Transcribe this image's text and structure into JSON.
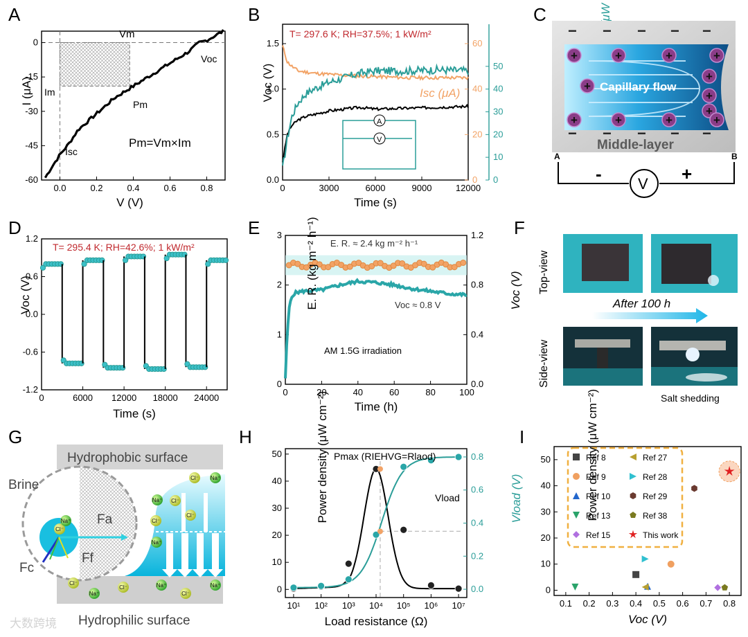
{
  "panels": {
    "A": "A",
    "B": "B",
    "C": "C",
    "D": "D",
    "E": "E",
    "F": "F",
    "G": "G",
    "H": "H",
    "I": "I"
  },
  "watermark": "大数跨境",
  "chart_data": [
    {
      "id": "A",
      "type": "line",
      "xlabel": "V (V)",
      "ylabel": "I (μA)",
      "xlim": [
        -0.1,
        0.9
      ],
      "ylim": [
        -60,
        5
      ],
      "xticks": [
        "0.0",
        "0.2",
        "0.4",
        "0.6",
        "0.8"
      ],
      "yticks": [
        "0",
        "-15",
        "-30",
        "-45",
        "-60"
      ],
      "x": [
        -0.08,
        -0.05,
        0.0,
        0.05,
        0.1,
        0.2,
        0.3,
        0.4,
        0.5,
        0.6,
        0.7,
        0.76,
        0.8,
        0.89
      ],
      "y": [
        -59,
        -55,
        -49,
        -44,
        -38,
        -31,
        -24,
        -19,
        -14,
        -9,
        -4,
        0,
        1,
        5
      ],
      "annotations": {
        "vm": "Vm",
        "voc": "Voc",
        "im": "Im",
        "pm": "Pm",
        "isc": "Isc",
        "eq": "Pm=Vm×Im"
      }
    },
    {
      "id": "B",
      "type": "line",
      "title": "T= 297.6 K;  RH=37.5%;  1 kW/m²",
      "xlabel": "Time (s)",
      "ylabel_left": "Voc (V)",
      "ylabel_right": "Power density (μW cm⁻²)",
      "ylabel_mid": "Isc (μA)",
      "xlim": [
        0,
        12000
      ],
      "ylim_left": [
        0,
        1.5
      ],
      "ylim_right": [
        0,
        60
      ],
      "xticks": [
        "0",
        "3000",
        "6000",
        "9000",
        "12000"
      ],
      "yticks_left": [
        "0.0",
        "0.5",
        "1.0",
        "1.5"
      ],
      "yticks_mid": [
        "0",
        "20",
        "40",
        "60"
      ],
      "yticks_right": [
        "0",
        "10",
        "20",
        "30",
        "40",
        "50"
      ],
      "series": [
        {
          "name": "Voc",
          "color": "#000000",
          "x": [
            0,
            300,
            600,
            1000,
            1500,
            2000,
            3000,
            4000,
            5000,
            6000,
            8000,
            10000,
            12000
          ],
          "values": [
            0.2,
            0.5,
            0.6,
            0.66,
            0.7,
            0.72,
            0.76,
            0.78,
            0.8,
            0.78,
            0.79,
            0.8,
            0.81
          ]
        },
        {
          "name": "Isc",
          "color": "#f2a366",
          "x": [
            0,
            300,
            600,
            1000,
            2000,
            3000,
            4000,
            6000,
            8000,
            10000,
            12000
          ],
          "values": [
            59,
            52,
            50,
            48,
            47,
            46.5,
            46,
            45.5,
            45,
            45,
            45
          ]
        },
        {
          "name": "Power density",
          "color": "#2a9d98",
          "x": [
            0,
            300,
            600,
            1000,
            1500,
            2000,
            3000,
            4000,
            5000,
            6000,
            8000,
            10000,
            12000
          ],
          "values": [
            5,
            18,
            28,
            34,
            38,
            40,
            43,
            45,
            47,
            48,
            48,
            48.5,
            48
          ]
        }
      ]
    },
    {
      "id": "D",
      "type": "scatter",
      "title": "T= 295.4 K; RH=42.6%; 1 kW/m²",
      "xlabel": "Time (s)",
      "ylabel": "Voc (V)",
      "xlim": [
        0,
        27000
      ],
      "ylim": [
        -1.2,
        1.2
      ],
      "xticks": [
        "0",
        "6000",
        "12000",
        "18000",
        "24000"
      ],
      "yticks": [
        "-1.2",
        "-0.6",
        "0.0",
        "0.6",
        "1.2"
      ],
      "segments": [
        {
          "x0": 0,
          "x1": 3000,
          "v": 0.8
        },
        {
          "x0": 3000,
          "x1": 6000,
          "v": -0.78
        },
        {
          "x0": 6000,
          "x1": 9000,
          "v": 0.86
        },
        {
          "x0": 9000,
          "x1": 12000,
          "v": -0.85
        },
        {
          "x0": 12000,
          "x1": 15000,
          "v": 0.92
        },
        {
          "x0": 15000,
          "x1": 18000,
          "v": -0.87
        },
        {
          "x0": 18000,
          "x1": 21000,
          "v": 0.95
        },
        {
          "x0": 21000,
          "x1": 24000,
          "v": -0.84
        },
        {
          "x0": 24000,
          "x1": 27000,
          "v": 0.86
        }
      ]
    },
    {
      "id": "E",
      "type": "line",
      "xlabel": "Time (h)",
      "ylabel_left": "E. R. (kg m⁻² h⁻¹)",
      "ylabel_right": "Voc (V)",
      "xlim": [
        0,
        100
      ],
      "ylim_left": [
        0,
        3
      ],
      "ylim_right": [
        0,
        1.2
      ],
      "xticks": [
        "0",
        "20",
        "40",
        "60",
        "80",
        "100"
      ],
      "yticks_left": [
        "0",
        "1",
        "2",
        "3"
      ],
      "yticks_right": [
        "0.0",
        "0.4",
        "0.8",
        "1.2"
      ],
      "er_value": 2.4,
      "er_label": "E. R. ≈ 2.4 kg m⁻² h⁻¹",
      "voc_label": "Voc ≈ 0.8 V",
      "note": "AM 1.5G irradiation",
      "voc_series": {
        "x": [
          0,
          1,
          2,
          3,
          4,
          6,
          10,
          20,
          30,
          40,
          50,
          60,
          70,
          80,
          90,
          100
        ],
        "values": [
          0.05,
          0.4,
          0.6,
          0.68,
          0.72,
          0.74,
          0.75,
          0.76,
          0.8,
          0.83,
          0.82,
          0.8,
          0.77,
          0.75,
          0.73,
          0.72
        ]
      }
    },
    {
      "id": "H",
      "type": "line",
      "title": "Pmax (RIEHVG=Rlaod)",
      "xlabel": "Load resistance (Ω)",
      "ylabel_left": "Power density (μW cm⁻²)",
      "ylabel_right": "Vload (V)",
      "xlim_log": [
        1,
        7
      ],
      "ylim_left": [
        0,
        50
      ],
      "ylim_right": [
        0,
        0.8
      ],
      "xticks": [
        "10¹",
        "10²",
        "10³",
        "10⁴",
        "10⁵",
        "10⁶",
        "10⁷"
      ],
      "yticks_left": [
        "0",
        "10",
        "20",
        "30",
        "40",
        "50"
      ],
      "yticks_right": [
        "0.0",
        "0.2",
        "0.4",
        "0.6",
        "0.8"
      ],
      "vload_label": "Vload",
      "series": [
        {
          "name": "Power density",
          "color": "#000000",
          "x_log": [
            1,
            2,
            3,
            4,
            5,
            6,
            7
          ],
          "values": [
            0.3,
            1.0,
            9.5,
            44.5,
            22,
            1.5,
            0.3
          ]
        },
        {
          "name": "Vload",
          "color": "#2a9d98",
          "x_log": [
            1,
            2,
            3,
            4,
            5,
            6,
            7
          ],
          "values": [
            0.01,
            0.02,
            0.06,
            0.33,
            0.74,
            0.78,
            0.8
          ]
        }
      ],
      "marker": {
        "x_log": 4.15,
        "power": 44.5,
        "vload": 0.35
      }
    },
    {
      "id": "I",
      "type": "scatter",
      "xlabel": "Voc (V)",
      "ylabel": "Power density (μW cm⁻²)",
      "xlim": [
        0.05,
        0.85
      ],
      "ylim": [
        -2,
        55
      ],
      "xticks": [
        "0.1",
        "0.2",
        "0.3",
        "0.4",
        "0.5",
        "0.6",
        "0.7",
        "0.8"
      ],
      "yticks": [
        "0",
        "10",
        "20",
        "30",
        "40",
        "50"
      ],
      "points": [
        {
          "name": "Ref 8",
          "x": 0.4,
          "y": 6,
          "color": "#444444",
          "shape": "square"
        },
        {
          "name": "Ref 9",
          "x": 0.55,
          "y": 10,
          "color": "#f0a060",
          "shape": "circle"
        },
        {
          "name": "Ref 10",
          "x": 0.45,
          "y": 1.5,
          "color": "#2266cc",
          "shape": "tri-up"
        },
        {
          "name": "Ref 13",
          "x": 0.14,
          "y": 1.2,
          "color": "#2aa36a",
          "shape": "tri-down"
        },
        {
          "name": "Ref 15",
          "x": 0.75,
          "y": 1,
          "color": "#b070e0",
          "shape": "diamond"
        },
        {
          "name": "Ref 27",
          "x": 0.44,
          "y": 1.2,
          "color": "#b8a030",
          "shape": "tri-left"
        },
        {
          "name": "Ref 28",
          "x": 0.44,
          "y": 12,
          "color": "#30c0d0",
          "shape": "tri-right"
        },
        {
          "name": "Ref 29",
          "x": 0.65,
          "y": 39,
          "color": "#6a3a30",
          "shape": "hexagon"
        },
        {
          "name": "Ref 38",
          "x": 0.78,
          "y": 1,
          "color": "#7a7a20",
          "shape": "pentagon"
        },
        {
          "name": "This work",
          "x": 0.8,
          "y": 45.5,
          "color": "#e02020",
          "shape": "star"
        }
      ]
    }
  ],
  "diagram_c": {
    "label": "Capillary flow",
    "middle": "Middle-layer",
    "a": "A",
    "b": "B",
    "minus": "-",
    "plus": "+",
    "v": "V"
  },
  "photos_f": {
    "top": "Top-view",
    "side": "Side-view",
    "arrow": "After 100 h",
    "shed": "Salt shedding"
  },
  "diagram_g": {
    "hydrophobic": "Hydrophobic surface",
    "hydrophilic": "Hydrophilic surface",
    "brine": "Brine",
    "fa": "Fa",
    "ff": "Ff",
    "fc": "Fc",
    "na": "Na⁺",
    "cl": "Cl⁻"
  }
}
